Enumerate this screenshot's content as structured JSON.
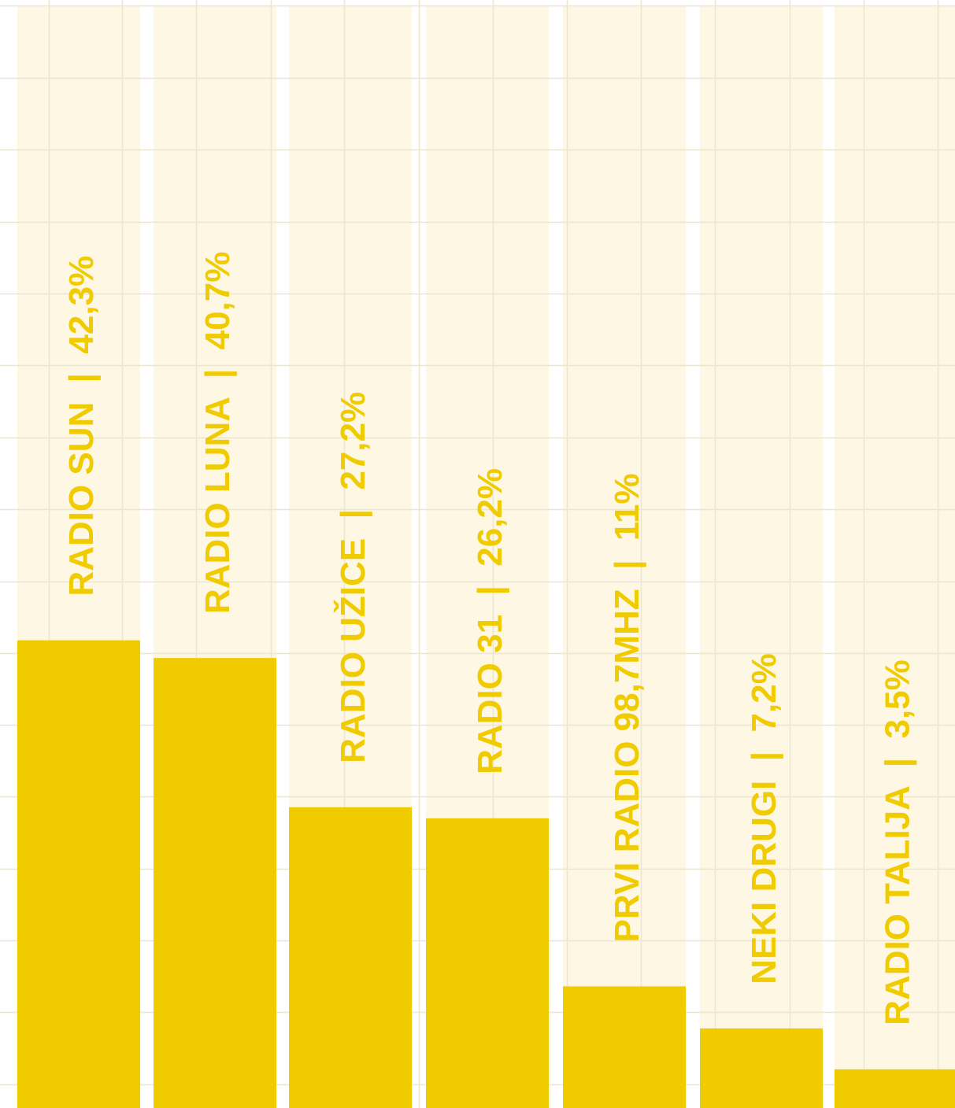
{
  "chart_data": {
    "type": "bar",
    "orientation": "vertical",
    "categories": [
      "RADIO SUN",
      "RADIO LUNA",
      "RADIO UŽICE",
      "RADIO 31",
      "PRVI RADIO 98,7MHZ",
      "NEKI DRUGI",
      "RADIO TALIJA"
    ],
    "values": [
      42.3,
      40.7,
      27.2,
      26.2,
      11,
      7.2,
      3.5
    ],
    "value_labels": [
      "42,3%",
      "40,7%",
      "27,2%",
      "26,2%",
      "11%",
      "7,2%",
      "3,5%"
    ],
    "labels": [
      "RADIO SUN  |  42,3%",
      "RADIO LUNA  |  40,7%",
      "RADIO UŽICE  |  27,2%",
      "RADIO 31  |  26,2%",
      "PRVI RADIO 98,7MHZ  |  11%",
      "NEKI DRUGI  |  7,2%",
      "RADIO TALIJA  |  3,5%"
    ],
    "unit": "%",
    "ylim": [
      0,
      100
    ],
    "grid": true,
    "legend": "none"
  },
  "colors": {
    "bar": "#f0cb00",
    "track": "#fdf7e4",
    "grid": "#ebe5d2",
    "label": "#f0cb00",
    "background": "#ffffff"
  }
}
